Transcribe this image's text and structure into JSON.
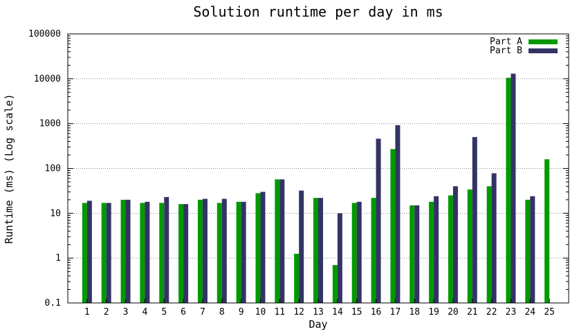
{
  "chart_data": {
    "type": "bar",
    "title": "Solution runtime per day in ms",
    "xlabel": "Day",
    "ylabel": "Runtime (ms) (Log scale)",
    "yscale": "log",
    "ylim": [
      0.1,
      100000
    ],
    "yticks": [
      {
        "value": 0.1,
        "label": "0.1"
      },
      {
        "value": 1,
        "label": "1"
      },
      {
        "value": 10,
        "label": "10"
      },
      {
        "value": 100,
        "label": "100"
      },
      {
        "value": 1000,
        "label": "1000"
      },
      {
        "value": 10000,
        "label": "10000"
      },
      {
        "value": 100000,
        "label": "100000"
      }
    ],
    "grid": true,
    "legend_position": "top-right",
    "categories": [
      "1",
      "2",
      "3",
      "4",
      "5",
      "6",
      "7",
      "8",
      "9",
      "10",
      "11",
      "12",
      "13",
      "14",
      "15",
      "16",
      "17",
      "18",
      "19",
      "20",
      "21",
      "22",
      "23",
      "24",
      "25"
    ],
    "series": [
      {
        "name": "Part A",
        "color": "#009900",
        "values": [
          17,
          17,
          20,
          17,
          17,
          16,
          20,
          17,
          18,
          28,
          57,
          1.25,
          22,
          0.7,
          17,
          22,
          270,
          15,
          18,
          25,
          34,
          40,
          10500,
          20,
          160
        ]
      },
      {
        "name": "Part B",
        "color": "#333366",
        "values": [
          19,
          17,
          20,
          18,
          23,
          16,
          21,
          21,
          18,
          30,
          57,
          32,
          22,
          10,
          18,
          460,
          920,
          15,
          24,
          40,
          500,
          78,
          13000,
          24,
          null
        ]
      }
    ]
  }
}
